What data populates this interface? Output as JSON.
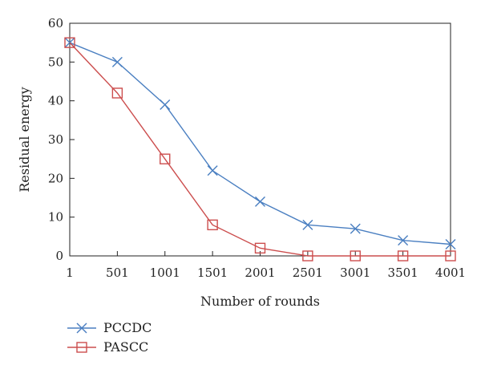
{
  "chart_data": {
    "type": "line",
    "title": "",
    "xlabel": "Number of rounds",
    "ylabel": "Residual energy",
    "categories": [
      "1",
      "501",
      "1001",
      "1501",
      "2001",
      "2501",
      "3001",
      "3501",
      "4001"
    ],
    "x": [
      1,
      501,
      1001,
      1501,
      2001,
      2501,
      3001,
      3501,
      4001
    ],
    "ylim": [
      0,
      60
    ],
    "yticks": [
      "0",
      "10",
      "20",
      "30",
      "40",
      "50",
      "60"
    ],
    "grid": false,
    "legend_position": "bottom-left",
    "series": [
      {
        "name": "PCCDC",
        "marker": "x",
        "color": "#4a7fc1",
        "values": [
          55,
          50,
          39,
          22,
          14,
          8,
          7,
          4,
          3
        ]
      },
      {
        "name": "PASCC",
        "marker": "square",
        "color": "#cc4e4e",
        "values": [
          55,
          42,
          25,
          8,
          2,
          0,
          0,
          0,
          0
        ]
      }
    ]
  }
}
